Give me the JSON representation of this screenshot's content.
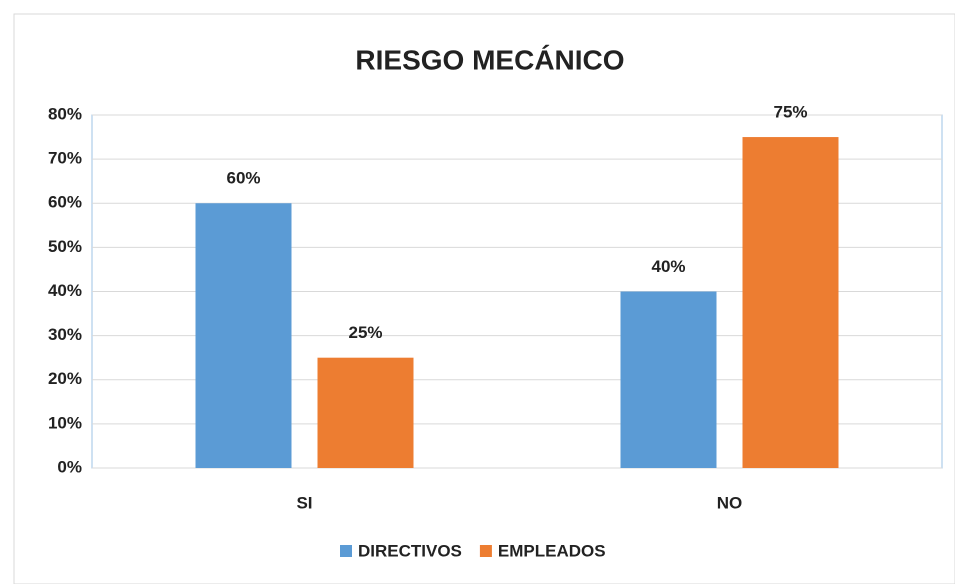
{
  "chart_data": {
    "type": "bar",
    "title": "RIESGO MECÁNICO",
    "categories": [
      "SI",
      "NO"
    ],
    "series": [
      {
        "name": "DIRECTIVOS",
        "color": "#5b9bd5",
        "values": [
          60,
          40
        ],
        "value_labels": [
          "60%",
          "40%"
        ]
      },
      {
        "name": "EMPLEADOS",
        "color": "#ed7d31",
        "values": [
          25,
          75
        ],
        "value_labels": [
          "25%",
          "75%"
        ]
      }
    ],
    "ylim": [
      0,
      80
    ],
    "yticks": [
      {
        "value": 0,
        "label": "0%"
      },
      {
        "value": 10,
        "label": "10%"
      },
      {
        "value": 20,
        "label": "20%"
      },
      {
        "value": 30,
        "label": "30%"
      },
      {
        "value": 40,
        "label": "40%"
      },
      {
        "value": 50,
        "label": "50%"
      },
      {
        "value": 60,
        "label": "60%"
      },
      {
        "value": 70,
        "label": "70%"
      },
      {
        "value": 80,
        "label": "80%"
      }
    ],
    "grid": true,
    "legend": "bottom"
  }
}
